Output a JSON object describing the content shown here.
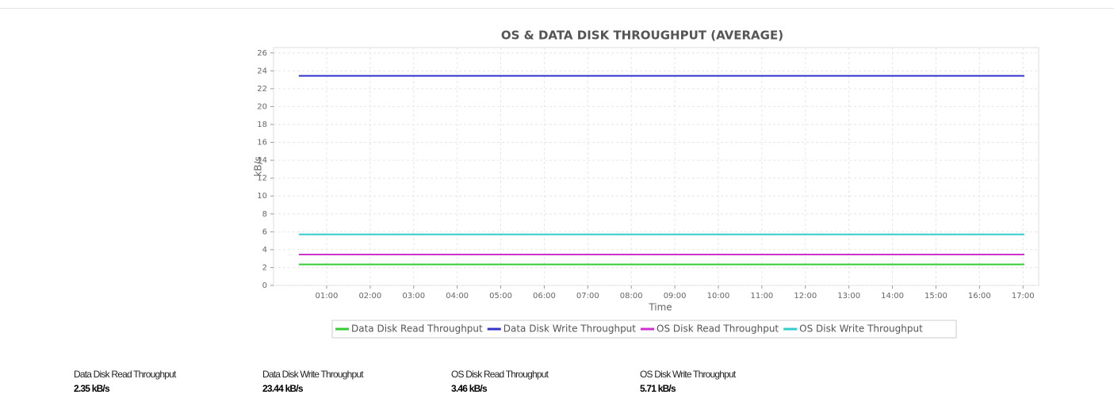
{
  "chart_data": {
    "type": "line",
    "title": "OS & DATA DISK THROUGHPUT (AVERAGE)",
    "x_label": "Time",
    "y_label": "kB/s",
    "x": [
      0.36,
      1.19,
      2.03,
      2.86,
      3.69,
      4.53,
      5.36,
      6.19,
      7.03,
      7.86,
      8.69,
      9.53,
      10.36,
      11.19,
      12.03,
      12.86,
      13.69,
      14.53,
      15.36,
      16.19,
      17.03
    ],
    "series": [
      {
        "name": "Data Disk Read Throughput",
        "color": "#33cc33",
        "values": [
          2.35,
          2.35,
          2.35,
          2.35,
          2.35,
          2.35,
          2.35,
          2.35,
          2.35,
          2.35,
          2.35,
          2.35,
          2.35,
          2.35,
          2.35,
          2.35,
          2.35,
          2.35,
          2.35,
          2.35,
          2.35
        ]
      },
      {
        "name": "Data Disk Write Throughput",
        "color": "#3333cc",
        "values": [
          23.44,
          23.44,
          23.44,
          23.44,
          23.44,
          23.44,
          23.44,
          23.44,
          23.44,
          23.44,
          23.44,
          23.44,
          23.44,
          23.44,
          23.44,
          23.44,
          23.44,
          23.44,
          23.44,
          23.44,
          23.44
        ]
      },
      {
        "name": "OS Disk Read Throughput",
        "color": "#cc33cc",
        "values": [
          3.46,
          3.46,
          3.46,
          3.46,
          3.46,
          3.46,
          3.46,
          3.46,
          3.46,
          3.46,
          3.46,
          3.46,
          3.46,
          3.46,
          3.46,
          3.46,
          3.46,
          3.46,
          3.46,
          3.46,
          3.46
        ]
      },
      {
        "name": "OS Disk Write Throughput",
        "color": "#33cccc",
        "values": [
          5.71,
          5.71,
          5.71,
          5.71,
          5.71,
          5.71,
          5.71,
          5.71,
          5.71,
          5.71,
          5.71,
          5.71,
          5.71,
          5.71,
          5.71,
          5.71,
          5.71,
          5.71,
          5.71,
          5.71,
          5.71
        ]
      }
    ],
    "xlim": [
      -0.22,
      17.36
    ],
    "ylim": [
      0,
      26.6
    ],
    "xticks": [
      {
        "value": 1,
        "label": "01:00"
      },
      {
        "value": 2,
        "label": "02:00"
      },
      {
        "value": 3,
        "label": "03:00"
      },
      {
        "value": 4,
        "label": "04:00"
      },
      {
        "value": 5,
        "label": "05:00"
      },
      {
        "value": 6,
        "label": "06:00"
      },
      {
        "value": 7,
        "label": "07:00"
      },
      {
        "value": 8,
        "label": "08:00"
      },
      {
        "value": 9,
        "label": "09:00"
      },
      {
        "value": 10,
        "label": "10:00"
      },
      {
        "value": 11,
        "label": "11:00"
      },
      {
        "value": 12,
        "label": "12:00"
      },
      {
        "value": 13,
        "label": "13:00"
      },
      {
        "value": 14,
        "label": "14:00"
      },
      {
        "value": 15,
        "label": "15:00"
      },
      {
        "value": 16,
        "label": "16:00"
      },
      {
        "value": 17,
        "label": "17:00"
      }
    ],
    "yticks": [
      0,
      2,
      4,
      6,
      8,
      10,
      12,
      14,
      16,
      18,
      20,
      22,
      24,
      26
    ],
    "grid": true,
    "legend": "bottom"
  },
  "summary": [
    {
      "label": "Data Disk Read Throughput",
      "value": "2.35 kB/s"
    },
    {
      "label": "Data Disk Write Throughput",
      "value": "23.44 kB/s"
    },
    {
      "label": "OS Disk Read Throughput",
      "value": "3.46 kB/s"
    },
    {
      "label": "OS Disk Write Throughput",
      "value": "5.71 kB/s"
    }
  ]
}
